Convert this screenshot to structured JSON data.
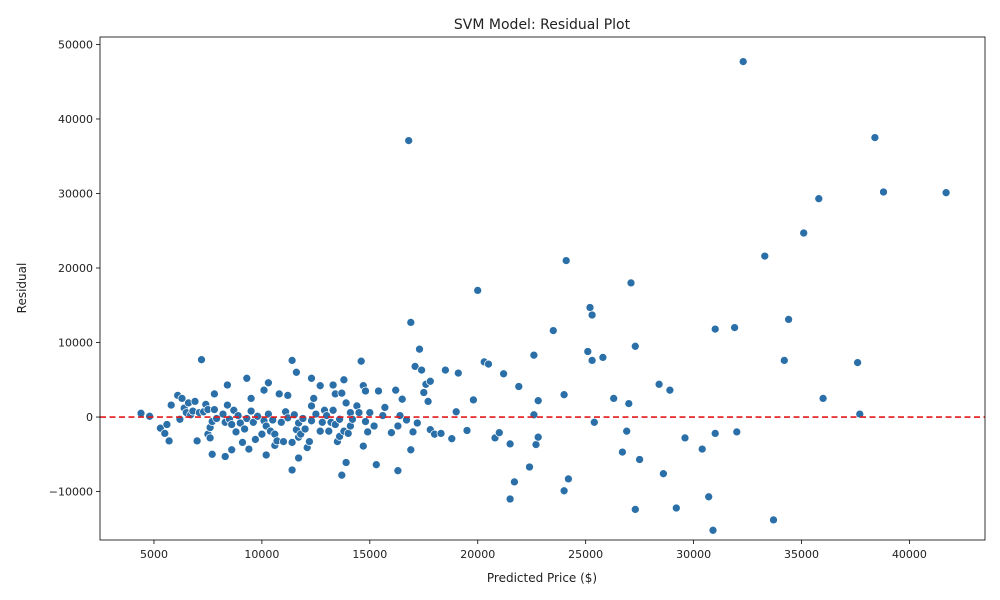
{
  "chart_data": {
    "type": "scatter",
    "title": "SVM Model: Residual Plot",
    "xlabel": "Predicted Price ($)",
    "ylabel": "Residual",
    "xlim": [
      2500,
      43500
    ],
    "ylim": [
      -16500,
      51000
    ],
    "x_ticks": [
      5000,
      10000,
      15000,
      20000,
      25000,
      30000,
      35000,
      40000
    ],
    "y_ticks": [
      -10000,
      0,
      10000,
      20000,
      30000,
      40000,
      50000
    ],
    "x_tick_labels": [
      "5000",
      "10000",
      "15000",
      "20000",
      "25000",
      "30000",
      "35000",
      "40000"
    ],
    "y_tick_labels": [
      "−10000",
      "0",
      "10000",
      "20000",
      "30000",
      "40000",
      "50000"
    ],
    "grid": false,
    "reference_line": {
      "y": 0,
      "style": "dashed",
      "color": "#e31a1c"
    },
    "marker_color": "#2a6fa8",
    "points": [
      [
        4400,
        500
      ],
      [
        4800,
        100
      ],
      [
        5300,
        -1500
      ],
      [
        5500,
        -2200
      ],
      [
        5600,
        -1000
      ],
      [
        5700,
        -3200
      ],
      [
        5800,
        1600
      ],
      [
        6100,
        2900
      ],
      [
        6200,
        -300
      ],
      [
        6300,
        2500
      ],
      [
        6400,
        1200
      ],
      [
        6500,
        600
      ],
      [
        6600,
        1900
      ],
      [
        6700,
        300
      ],
      [
        6800,
        800
      ],
      [
        6900,
        2100
      ],
      [
        7000,
        -3200
      ],
      [
        7100,
        600
      ],
      [
        7200,
        7700
      ],
      [
        7300,
        700
      ],
      [
        7400,
        1700
      ],
      [
        7500,
        -2300
      ],
      [
        7500,
        1000
      ],
      [
        7600,
        -2800
      ],
      [
        7600,
        -1400
      ],
      [
        7700,
        -5000
      ],
      [
        7700,
        -600
      ],
      [
        7800,
        3100
      ],
      [
        7800,
        1000
      ],
      [
        7900,
        -200
      ],
      [
        8200,
        400
      ],
      [
        8300,
        -5300
      ],
      [
        8300,
        -700
      ],
      [
        8400,
        4300
      ],
      [
        8400,
        1600
      ],
      [
        8500,
        -300
      ],
      [
        8600,
        -4400
      ],
      [
        8600,
        -1000
      ],
      [
        8700,
        900
      ],
      [
        8800,
        -2000
      ],
      [
        8900,
        200
      ],
      [
        9000,
        -800
      ],
      [
        9100,
        -3400
      ],
      [
        9200,
        -1600
      ],
      [
        9300,
        5200
      ],
      [
        9300,
        -200
      ],
      [
        9400,
        -4300
      ],
      [
        9500,
        2500
      ],
      [
        9500,
        800
      ],
      [
        9600,
        -700
      ],
      [
        9700,
        -3000
      ],
      [
        9800,
        100
      ],
      [
        10000,
        -2300
      ],
      [
        10100,
        3600
      ],
      [
        10100,
        -500
      ],
      [
        10200,
        -5100
      ],
      [
        10200,
        -1200
      ],
      [
        10300,
        4600
      ],
      [
        10300,
        400
      ],
      [
        10400,
        -1900
      ],
      [
        10500,
        -400
      ],
      [
        10600,
        -3800
      ],
      [
        10600,
        -2300
      ],
      [
        10700,
        -3200
      ],
      [
        10800,
        3100
      ],
      [
        10900,
        -700
      ],
      [
        11000,
        -3300
      ],
      [
        11100,
        700
      ],
      [
        11200,
        2900
      ],
      [
        11200,
        -100
      ],
      [
        11400,
        7600
      ],
      [
        11400,
        -3400
      ],
      [
        11400,
        -7100
      ],
      [
        11500,
        300
      ],
      [
        11600,
        6000
      ],
      [
        11600,
        -1700
      ],
      [
        11700,
        -5500
      ],
      [
        11700,
        -2700
      ],
      [
        11700,
        -800
      ],
      [
        11800,
        -2300
      ],
      [
        11900,
        -200
      ],
      [
        12000,
        -1600
      ],
      [
        12100,
        -4100
      ],
      [
        12200,
        -3300
      ],
      [
        12300,
        5200
      ],
      [
        12300,
        1500
      ],
      [
        12300,
        -500
      ],
      [
        12400,
        2500
      ],
      [
        12500,
        400
      ],
      [
        12700,
        4200
      ],
      [
        12700,
        -1900
      ],
      [
        12800,
        -700
      ],
      [
        12900,
        900
      ],
      [
        13000,
        200
      ],
      [
        13100,
        -1900
      ],
      [
        13200,
        -700
      ],
      [
        13300,
        4300
      ],
      [
        13300,
        900
      ],
      [
        13400,
        3100
      ],
      [
        13400,
        -1000
      ],
      [
        13500,
        -3300
      ],
      [
        13600,
        -2600
      ],
      [
        13600,
        -300
      ],
      [
        13700,
        -7800
      ],
      [
        13700,
        3200
      ],
      [
        13800,
        -1900
      ],
      [
        13800,
        5000
      ],
      [
        13900,
        1900
      ],
      [
        13900,
        -6100
      ],
      [
        14000,
        -2200
      ],
      [
        14100,
        600
      ],
      [
        14100,
        -1200
      ],
      [
        14200,
        -300
      ],
      [
        14400,
        1500
      ],
      [
        14500,
        600
      ],
      [
        14600,
        7500
      ],
      [
        14700,
        4200
      ],
      [
        14700,
        -3900
      ],
      [
        14800,
        3500
      ],
      [
        14800,
        -600
      ],
      [
        14900,
        -2000
      ],
      [
        15000,
        600
      ],
      [
        15200,
        -1200
      ],
      [
        15300,
        -6400
      ],
      [
        15400,
        3500
      ],
      [
        15600,
        200
      ],
      [
        15700,
        1300
      ],
      [
        16000,
        -2100
      ],
      [
        16200,
        3600
      ],
      [
        16300,
        -7200
      ],
      [
        16300,
        -1200
      ],
      [
        16400,
        200
      ],
      [
        16500,
        2400
      ],
      [
        16700,
        -400
      ],
      [
        16800,
        37100
      ],
      [
        16900,
        12700
      ],
      [
        16900,
        -4400
      ],
      [
        17000,
        -2000
      ],
      [
        17100,
        6800
      ],
      [
        17200,
        -800
      ],
      [
        17300,
        9100
      ],
      [
        17400,
        6300
      ],
      [
        17500,
        3300
      ],
      [
        17600,
        4400
      ],
      [
        17700,
        2100
      ],
      [
        17800,
        4800
      ],
      [
        17800,
        -1700
      ],
      [
        18000,
        -2300
      ],
      [
        18300,
        -2200
      ],
      [
        18500,
        6300
      ],
      [
        18800,
        -2900
      ],
      [
        19000,
        700
      ],
      [
        19100,
        5900
      ],
      [
        19500,
        -1800
      ],
      [
        19800,
        2300
      ],
      [
        20000,
        17000
      ],
      [
        20300,
        7400
      ],
      [
        20500,
        7100
      ],
      [
        20800,
        -2800
      ],
      [
        21000,
        -2100
      ],
      [
        21200,
        5800
      ],
      [
        21500,
        -3600
      ],
      [
        21500,
        -11000
      ],
      [
        21700,
        -8700
      ],
      [
        21900,
        4100
      ],
      [
        22400,
        -6700
      ],
      [
        22600,
        300
      ],
      [
        22600,
        8300
      ],
      [
        22700,
        -3700
      ],
      [
        22800,
        2200
      ],
      [
        22800,
        -2700
      ],
      [
        23500,
        11600
      ],
      [
        24000,
        3000
      ],
      [
        24000,
        -9900
      ],
      [
        24100,
        21000
      ],
      [
        24200,
        -8300
      ],
      [
        25100,
        8800
      ],
      [
        25200,
        14700
      ],
      [
        25300,
        7600
      ],
      [
        25300,
        13700
      ],
      [
        25400,
        -700
      ],
      [
        25800,
        8000
      ],
      [
        26300,
        2500
      ],
      [
        26700,
        -4700
      ],
      [
        26900,
        -1900
      ],
      [
        27000,
        1800
      ],
      [
        27100,
        18000
      ],
      [
        27300,
        9500
      ],
      [
        27300,
        -12400
      ],
      [
        27500,
        -5700
      ],
      [
        28400,
        4400
      ],
      [
        28600,
        -7600
      ],
      [
        28900,
        3600
      ],
      [
        29200,
        -12200
      ],
      [
        29600,
        -2800
      ],
      [
        30400,
        -4300
      ],
      [
        30700,
        -10700
      ],
      [
        30900,
        -15200
      ],
      [
        31000,
        11800
      ],
      [
        31000,
        -2200
      ],
      [
        31900,
        12000
      ],
      [
        32000,
        -2000
      ],
      [
        32300,
        47700
      ],
      [
        33300,
        21600
      ],
      [
        33700,
        -13800
      ],
      [
        34200,
        7600
      ],
      [
        34400,
        13100
      ],
      [
        35100,
        24700
      ],
      [
        35800,
        29300
      ],
      [
        36000,
        2500
      ],
      [
        37600,
        7300
      ],
      [
        37700,
        400
      ],
      [
        38400,
        37500
      ],
      [
        38800,
        30200
      ],
      [
        41700,
        30100
      ]
    ]
  }
}
